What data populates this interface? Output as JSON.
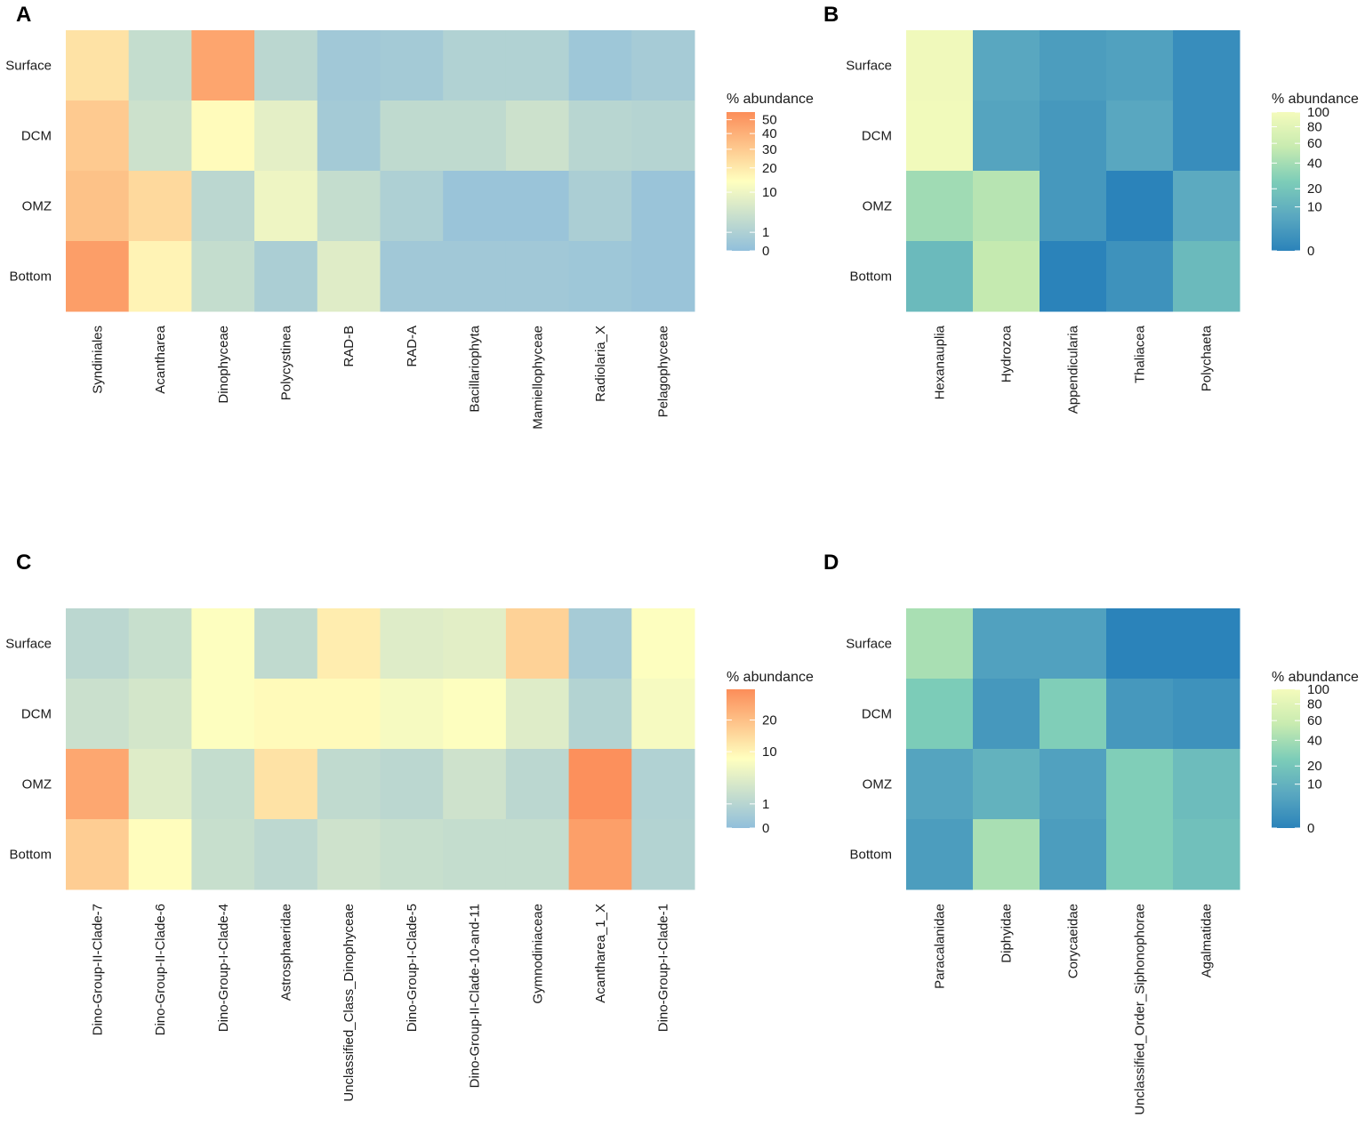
{
  "chart_data": [
    {
      "panel": "A",
      "type": "heatmap",
      "legend_title": "% abundance",
      "rows": [
        "Surface",
        "DCM",
        "OMZ",
        "Bottom"
      ],
      "columns": [
        "Syndiniales",
        "Acantharea",
        "Dinophyceae",
        "Polycystinea",
        "RAD-B",
        "RAD-A",
        "Bacillariophyta",
        "Mamiellophyceae",
        "Radiolaria_X",
        "Pelagophyceae"
      ],
      "values": [
        [
          22,
          3,
          45,
          2,
          0.3,
          0.4,
          1.2,
          1.2,
          0.2,
          0.5
        ],
        [
          30,
          4,
          15,
          8,
          0.4,
          2.5,
          2.5,
          4,
          1.8,
          1.5
        ],
        [
          33,
          25,
          2,
          10,
          3,
          1,
          0.1,
          0.1,
          0.8,
          0.1
        ],
        [
          48,
          17,
          3,
          0.8,
          7,
          0.3,
          0.3,
          0.3,
          0.2,
          0.1
        ]
      ],
      "scale": "diverging",
      "legend_ticks": [
        0,
        1,
        10,
        20,
        30,
        40,
        50
      ],
      "legend_range": [
        0,
        56
      ]
    },
    {
      "panel": "B",
      "type": "heatmap",
      "legend_title": "% abundance",
      "rows": [
        "Surface",
        "DCM",
        "OMZ",
        "Bottom"
      ],
      "columns": [
        "Hexanauplia",
        "Hydrozoa",
        "Appendicularia",
        "Thaliacea",
        "Polychaeta"
      ],
      "values": [
        [
          95,
          6,
          3,
          4,
          0.5
        ],
        [
          97,
          5,
          2,
          6,
          0.5
        ],
        [
          38,
          48,
          2,
          0,
          7
        ],
        [
          14,
          55,
          0,
          1,
          14
        ]
      ],
      "scale": "sequential",
      "legend_ticks": [
        0,
        10,
        20,
        40,
        60,
        80,
        100
      ],
      "legend_range": [
        0,
        100
      ]
    },
    {
      "panel": "C",
      "type": "heatmap",
      "legend_title": "% abundance",
      "rows": [
        "Surface",
        "DCM",
        "OMZ",
        "Bottom"
      ],
      "columns": [
        "Dino-Group-II-Clade-7",
        "Dino-Group-II-Clade-6",
        "Dino-Group-I-Clade-4",
        "Astrosphaeridae",
        "Unclassified_Class_Dinophyceae",
        "Dino-Group-I-Clade-5",
        "Dino-Group-II-Clade-10-and-11",
        "Gymnodiniaceae",
        "Acantharea_1_X",
        "Dino-Group-I-Clade-1"
      ],
      "values": [
        [
          1.2,
          2,
          8,
          1.5,
          11,
          4,
          4.5,
          16,
          0.3,
          8
        ],
        [
          2.2,
          3,
          8,
          9,
          9,
          7,
          8,
          4,
          0.8,
          7
        ],
        [
          26,
          4,
          1.8,
          13,
          1.5,
          1.2,
          2.5,
          1.2,
          32,
          0.7
        ],
        [
          17,
          8.5,
          2,
          1.3,
          2.5,
          2,
          1.8,
          1.8,
          28,
          0.8
        ]
      ],
      "scale": "diverging",
      "legend_ticks": [
        0,
        1,
        10,
        20
      ],
      "legend_range": [
        0,
        33
      ]
    },
    {
      "panel": "D",
      "type": "heatmap",
      "legend_title": "% abundance",
      "rows": [
        "Surface",
        "DCM",
        "OMZ",
        "Bottom"
      ],
      "columns": [
        "Paracalanidae",
        "Diphyidae",
        "Corycaeidae",
        "Unclassified_Order_Siphonophorae",
        "Agalmatidae"
      ],
      "values": [
        [
          42,
          4,
          4,
          0,
          0
        ],
        [
          24,
          2,
          26,
          2,
          1
        ],
        [
          5,
          10,
          4,
          26,
          15
        ],
        [
          3,
          42,
          3,
          26,
          17
        ]
      ],
      "scale": "sequential",
      "legend_ticks": [
        0,
        10,
        20,
        40,
        60,
        80,
        100
      ],
      "legend_range": [
        0,
        100
      ]
    }
  ]
}
